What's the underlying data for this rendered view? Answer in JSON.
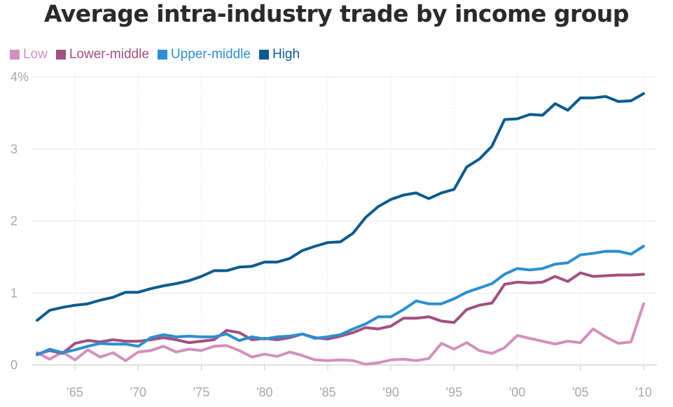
{
  "colors": {
    "Low": "#d291bc",
    "Lower-middle": "#a1507f",
    "Upper-middle": "#2b8fd1",
    "High": "#0d5b8e",
    "grid": "#e8e8e8",
    "axis": "#cccccc",
    "tick_text": "#a8a8a8"
  },
  "chart_data": {
    "type": "line",
    "title": "Average intra-industry trade by income group",
    "xlabel": "",
    "ylabel": "",
    "xlim": [
      1961,
      2011
    ],
    "ylim": [
      0,
      4
    ],
    "grid": true,
    "legend_position": "top-left",
    "y_ticks": [
      {
        "value": 0,
        "label": "0"
      },
      {
        "value": 1,
        "label": "1"
      },
      {
        "value": 2,
        "label": "2"
      },
      {
        "value": 3,
        "label": "3"
      },
      {
        "value": 4,
        "label": "4%"
      }
    ],
    "x_ticks": [
      {
        "value": 1965,
        "label": "'65"
      },
      {
        "value": 1970,
        "label": "'70"
      },
      {
        "value": 1975,
        "label": "'75"
      },
      {
        "value": 1980,
        "label": "'80"
      },
      {
        "value": 1985,
        "label": "'85"
      },
      {
        "value": 1990,
        "label": "'90"
      },
      {
        "value": 1995,
        "label": "'95"
      },
      {
        "value": 2000,
        "label": "'00"
      },
      {
        "value": 2005,
        "label": "'05"
      },
      {
        "value": 2010,
        "label": "'10"
      }
    ],
    "x": [
      1962,
      1963,
      1964,
      1965,
      1966,
      1967,
      1968,
      1969,
      1970,
      1971,
      1972,
      1973,
      1974,
      1975,
      1976,
      1977,
      1978,
      1979,
      1980,
      1981,
      1982,
      1983,
      1984,
      1985,
      1986,
      1987,
      1988,
      1989,
      1990,
      1991,
      1992,
      1993,
      1994,
      1995,
      1996,
      1997,
      1998,
      1999,
      2000,
      2001,
      2002,
      2003,
      2004,
      2005,
      2006,
      2007,
      2008,
      2009,
      2010
    ],
    "series": [
      {
        "name": "Low",
        "values": [
          0.17,
          0.08,
          0.18,
          0.07,
          0.21,
          0.11,
          0.17,
          0.06,
          0.18,
          0.2,
          0.26,
          0.18,
          0.22,
          0.2,
          0.26,
          0.27,
          0.2,
          0.11,
          0.15,
          0.12,
          0.18,
          0.13,
          0.07,
          0.06,
          0.07,
          0.06,
          0.01,
          0.03,
          0.07,
          0.08,
          0.06,
          0.09,
          0.3,
          0.22,
          0.31,
          0.2,
          0.16,
          0.24,
          0.41,
          0.37,
          0.33,
          0.29,
          0.33,
          0.31,
          0.5,
          0.39,
          0.3,
          0.32,
          0.85
        ]
      },
      {
        "name": "Lower-middle",
        "values": [
          0.15,
          0.2,
          0.16,
          0.3,
          0.34,
          0.32,
          0.35,
          0.33,
          0.33,
          0.35,
          0.38,
          0.35,
          0.31,
          0.33,
          0.35,
          0.48,
          0.45,
          0.35,
          0.37,
          0.35,
          0.38,
          0.43,
          0.38,
          0.36,
          0.4,
          0.45,
          0.52,
          0.5,
          0.54,
          0.65,
          0.65,
          0.67,
          0.61,
          0.59,
          0.77,
          0.83,
          0.86,
          1.12,
          1.15,
          1.14,
          1.15,
          1.23,
          1.16,
          1.28,
          1.23,
          1.24,
          1.25,
          1.25,
          1.26
        ]
      },
      {
        "name": "Upper-middle",
        "values": [
          0.14,
          0.22,
          0.17,
          0.21,
          0.26,
          0.3,
          0.29,
          0.29,
          0.26,
          0.38,
          0.42,
          0.39,
          0.4,
          0.39,
          0.39,
          0.43,
          0.34,
          0.39,
          0.36,
          0.39,
          0.4,
          0.43,
          0.37,
          0.39,
          0.42,
          0.5,
          0.57,
          0.67,
          0.67,
          0.77,
          0.89,
          0.85,
          0.85,
          0.92,
          1.01,
          1.07,
          1.13,
          1.26,
          1.34,
          1.32,
          1.34,
          1.4,
          1.42,
          1.53,
          1.55,
          1.58,
          1.58,
          1.54,
          1.65
        ]
      },
      {
        "name": "High",
        "values": [
          0.62,
          0.76,
          0.8,
          0.83,
          0.85,
          0.9,
          0.94,
          1.01,
          1.01,
          1.06,
          1.1,
          1.13,
          1.17,
          1.23,
          1.31,
          1.31,
          1.36,
          1.37,
          1.43,
          1.43,
          1.48,
          1.59,
          1.65,
          1.7,
          1.71,
          1.83,
          2.05,
          2.2,
          2.3,
          2.36,
          2.39,
          2.31,
          2.39,
          2.44,
          2.75,
          2.86,
          3.04,
          3.41,
          3.42,
          3.48,
          3.47,
          3.63,
          3.54,
          3.71,
          3.71,
          3.73,
          3.66,
          3.67,
          3.77
        ]
      }
    ]
  }
}
